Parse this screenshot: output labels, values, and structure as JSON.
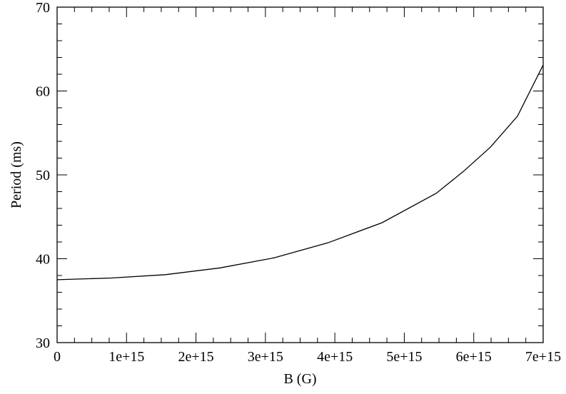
{
  "chart_data": {
    "type": "line",
    "title": "",
    "xlabel": "B (G)",
    "ylabel": "Period (ms)",
    "xlim": [
      0,
      7000000000000000.0
    ],
    "ylim": [
      30,
      70
    ],
    "xticks": [
      0,
      1000000000000000.0,
      2000000000000000.0,
      3000000000000000.0,
      4000000000000000.0,
      5000000000000000.0,
      6000000000000000.0,
      7000000000000000.0
    ],
    "xtick_labels": [
      "0",
      "1e+15",
      "2e+15",
      "3e+15",
      "4e+15",
      "5e+15",
      "6e+15",
      "7e+15"
    ],
    "yticks": [
      30,
      40,
      50,
      60,
      70
    ],
    "ytick_labels": [
      "30",
      "40",
      "50",
      "60",
      "70"
    ],
    "grid": false,
    "line_color": "#000000",
    "series": [
      {
        "x": [
          0,
          780000000000000.0,
          1560000000000000.0,
          2340000000000000.0,
          3120000000000000.0,
          3900000000000000.0,
          4680000000000000.0,
          5460000000000000.0,
          5850000000000000.0,
          6240000000000000.0,
          6630000000000000.0,
          7000000000000000.0
        ],
        "y": [
          37.5,
          37.7,
          38.1,
          38.9,
          40.1,
          41.9,
          44.3,
          47.8,
          50.4,
          53.3,
          57.0,
          63.1
        ]
      }
    ]
  }
}
